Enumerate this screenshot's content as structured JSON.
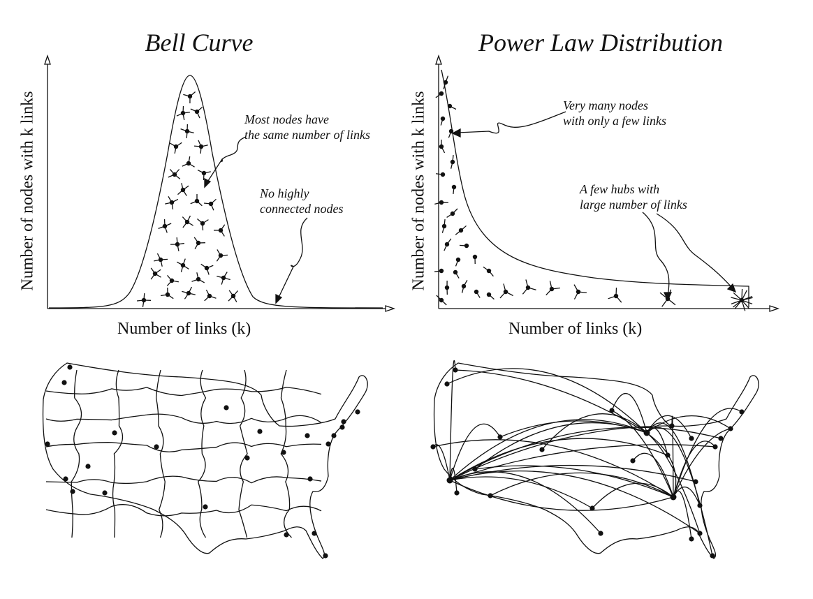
{
  "panels": {
    "bell": {
      "title": "Bell Curve",
      "ylabel": "Number of nodes with k links",
      "xlabel": "Number of links (k)",
      "note_peak": "Most nodes have\nthe same number of links",
      "note_tail": "No highly\nconnected nodes"
    },
    "power": {
      "title": "Power Law Distribution",
      "ylabel": "Number of nodes with k links",
      "xlabel": "Number of links (k)",
      "note_many": "Very many nodes\nwith only a few links",
      "note_hubs": "A few hubs with\nlarge number of links"
    }
  },
  "maps": {
    "left": {
      "kind": "random-network-usa"
    },
    "right": {
      "kind": "scale-free-network-usa"
    }
  },
  "colors": {
    "ink": "#111111",
    "background": "#ffffff"
  }
}
